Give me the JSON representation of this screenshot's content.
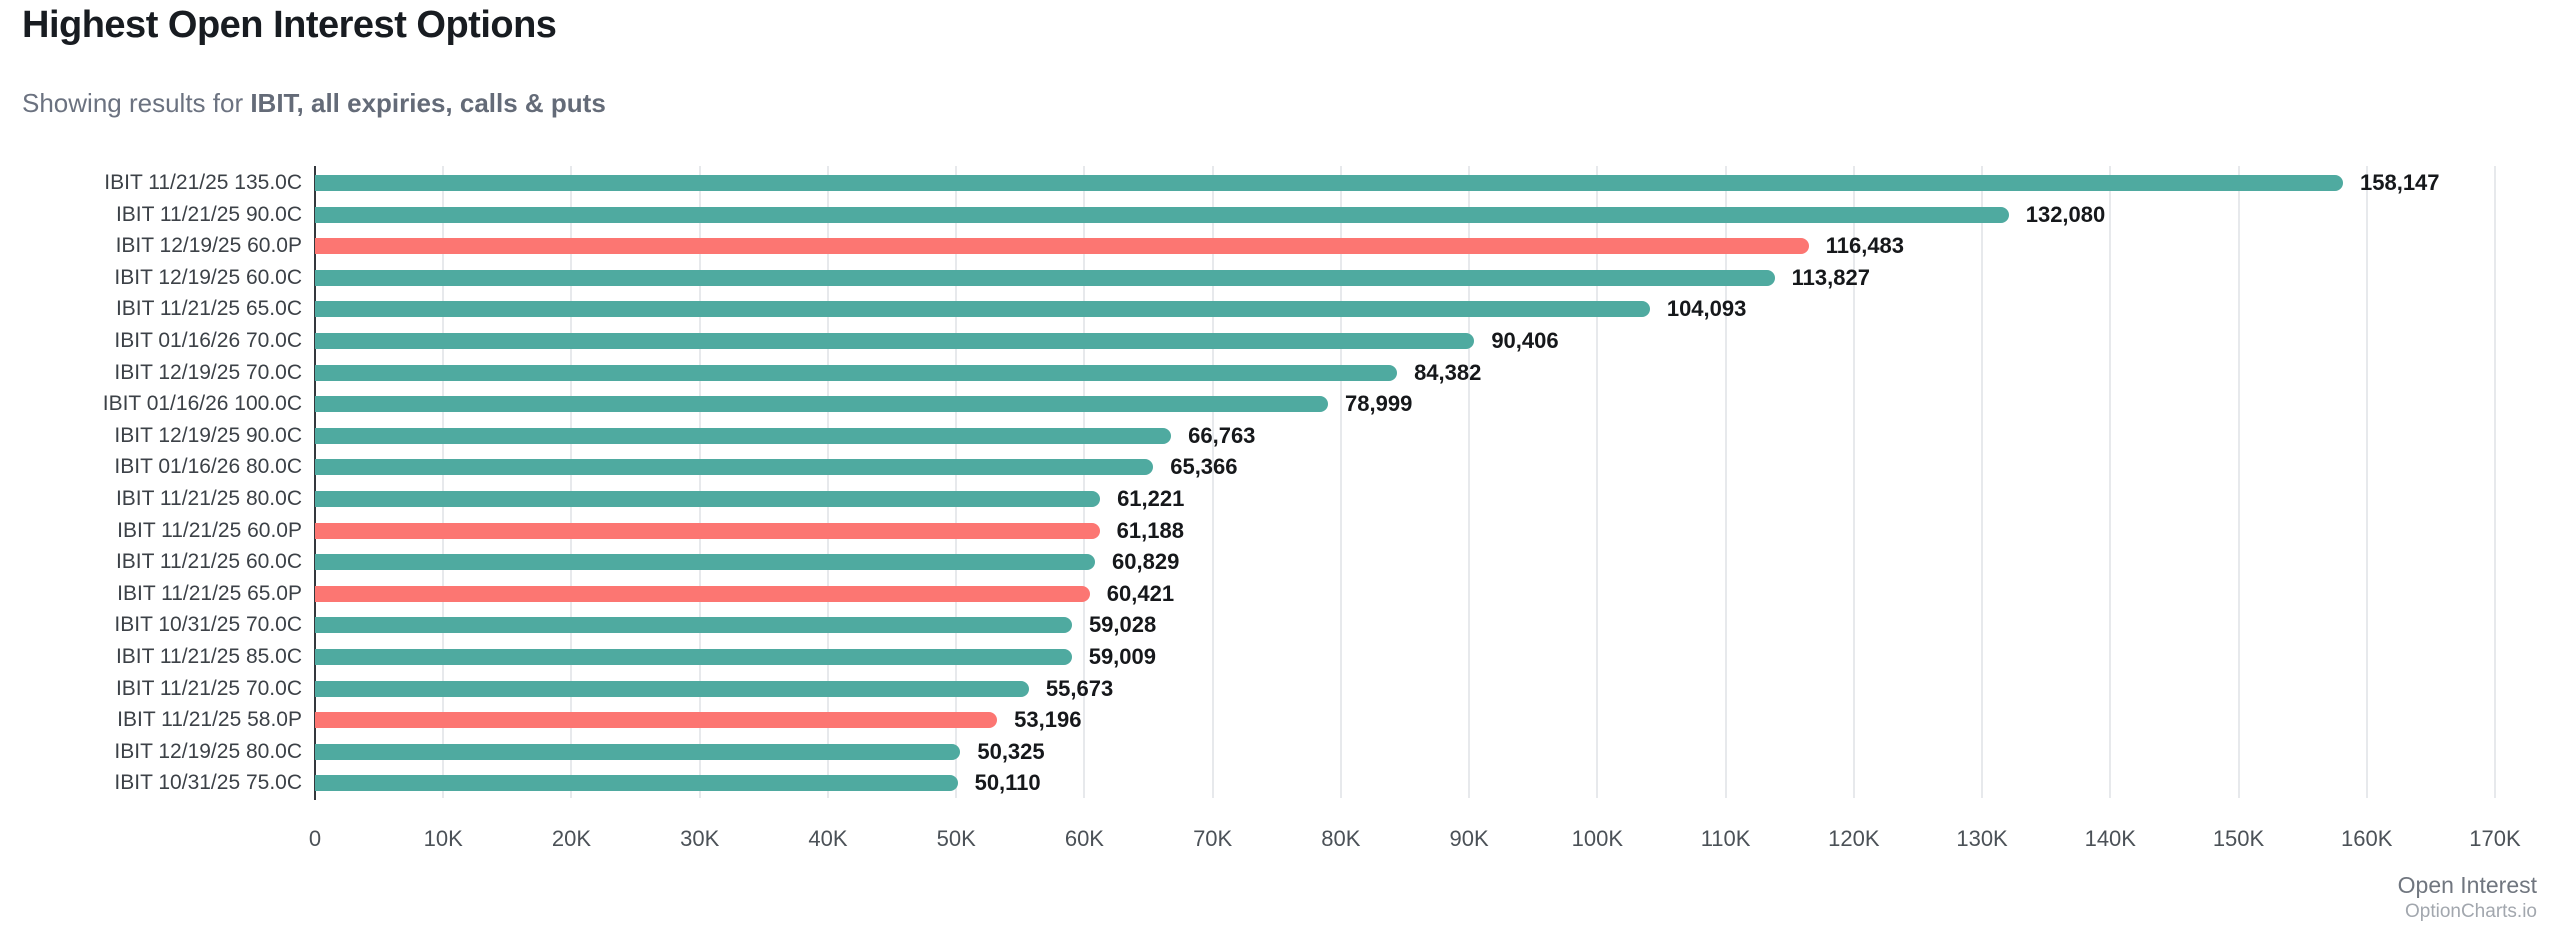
{
  "header": {
    "title": "Highest Open Interest Options",
    "subtitle_prefix": "Showing results for ",
    "subtitle_filter": "IBIT, all expiries, calls & puts"
  },
  "colors": {
    "call": "#4faaa0",
    "put": "#fc7672",
    "axis_line": "#34383d",
    "gridline": "#e7e9ec"
  },
  "chart_data": {
    "type": "bar",
    "orientation": "horizontal",
    "title": "Highest Open Interest Options",
    "xlabel": "Open Interest",
    "ylabel": "",
    "xlim": [
      0,
      170000
    ],
    "grid": true,
    "x_tick_labels": [
      "0",
      "10K",
      "20K",
      "30K",
      "40K",
      "50K",
      "60K",
      "70K",
      "80K",
      "90K",
      "100K",
      "110K",
      "120K",
      "130K",
      "140K",
      "150K",
      "160K",
      "170K"
    ],
    "categories": [
      "IBIT 11/21/25 135.0C",
      "IBIT 11/21/25 90.0C",
      "IBIT 12/19/25 60.0P",
      "IBIT 12/19/25 60.0C",
      "IBIT 11/21/25 65.0C",
      "IBIT 01/16/26 70.0C",
      "IBIT 12/19/25 70.0C",
      "IBIT 01/16/26 100.0C",
      "IBIT 12/19/25 90.0C",
      "IBIT 01/16/26 80.0C",
      "IBIT 11/21/25 80.0C",
      "IBIT 11/21/25 60.0P",
      "IBIT 11/21/25 60.0C",
      "IBIT 11/21/25 65.0P",
      "IBIT 10/31/25 70.0C",
      "IBIT 11/21/25 85.0C",
      "IBIT 11/21/25 70.0C",
      "IBIT 11/21/25 58.0P",
      "IBIT 12/19/25 80.0C",
      "IBIT 10/31/25 75.0C"
    ],
    "values": [
      158147,
      132080,
      116483,
      113827,
      104093,
      90406,
      84382,
      78999,
      66763,
      65366,
      61221,
      61188,
      60829,
      60421,
      59028,
      59009,
      55673,
      53196,
      50325,
      50110
    ],
    "items": [
      {
        "label": "IBIT 11/21/25 135.0C",
        "value": 158147,
        "display": "158,147",
        "kind": "call"
      },
      {
        "label": "IBIT 11/21/25 90.0C",
        "value": 132080,
        "display": "132,080",
        "kind": "call"
      },
      {
        "label": "IBIT 12/19/25 60.0P",
        "value": 116483,
        "display": "116,483",
        "kind": "put"
      },
      {
        "label": "IBIT 12/19/25 60.0C",
        "value": 113827,
        "display": "113,827",
        "kind": "call"
      },
      {
        "label": "IBIT 11/21/25 65.0C",
        "value": 104093,
        "display": "104,093",
        "kind": "call"
      },
      {
        "label": "IBIT 01/16/26 70.0C",
        "value": 90406,
        "display": "90,406",
        "kind": "call"
      },
      {
        "label": "IBIT 12/19/25 70.0C",
        "value": 84382,
        "display": "84,382",
        "kind": "call"
      },
      {
        "label": "IBIT 01/16/26 100.0C",
        "value": 78999,
        "display": "78,999",
        "kind": "call"
      },
      {
        "label": "IBIT 12/19/25 90.0C",
        "value": 66763,
        "display": "66,763",
        "kind": "call"
      },
      {
        "label": "IBIT 01/16/26 80.0C",
        "value": 65366,
        "display": "65,366",
        "kind": "call"
      },
      {
        "label": "IBIT 11/21/25 80.0C",
        "value": 61221,
        "display": "61,221",
        "kind": "call"
      },
      {
        "label": "IBIT 11/21/25 60.0P",
        "value": 61188,
        "display": "61,188",
        "kind": "put"
      },
      {
        "label": "IBIT 11/21/25 60.0C",
        "value": 60829,
        "display": "60,829",
        "kind": "call"
      },
      {
        "label": "IBIT 11/21/25 65.0P",
        "value": 60421,
        "display": "60,421",
        "kind": "put"
      },
      {
        "label": "IBIT 10/31/25 70.0C",
        "value": 59028,
        "display": "59,028",
        "kind": "call"
      },
      {
        "label": "IBIT 11/21/25 85.0C",
        "value": 59009,
        "display": "59,009",
        "kind": "call"
      },
      {
        "label": "IBIT 11/21/25 70.0C",
        "value": 55673,
        "display": "55,673",
        "kind": "call"
      },
      {
        "label": "IBIT 11/21/25 58.0P",
        "value": 53196,
        "display": "53,196",
        "kind": "put"
      },
      {
        "label": "IBIT 12/19/25 80.0C",
        "value": 50325,
        "display": "50,325",
        "kind": "call"
      },
      {
        "label": "IBIT 10/31/25 75.0C",
        "value": 50110,
        "display": "50,110",
        "kind": "call"
      }
    ],
    "legend": null,
    "legend_position": "none"
  },
  "footer": {
    "xaxis_title": "Open Interest",
    "watermark": "OptionCharts.io"
  }
}
